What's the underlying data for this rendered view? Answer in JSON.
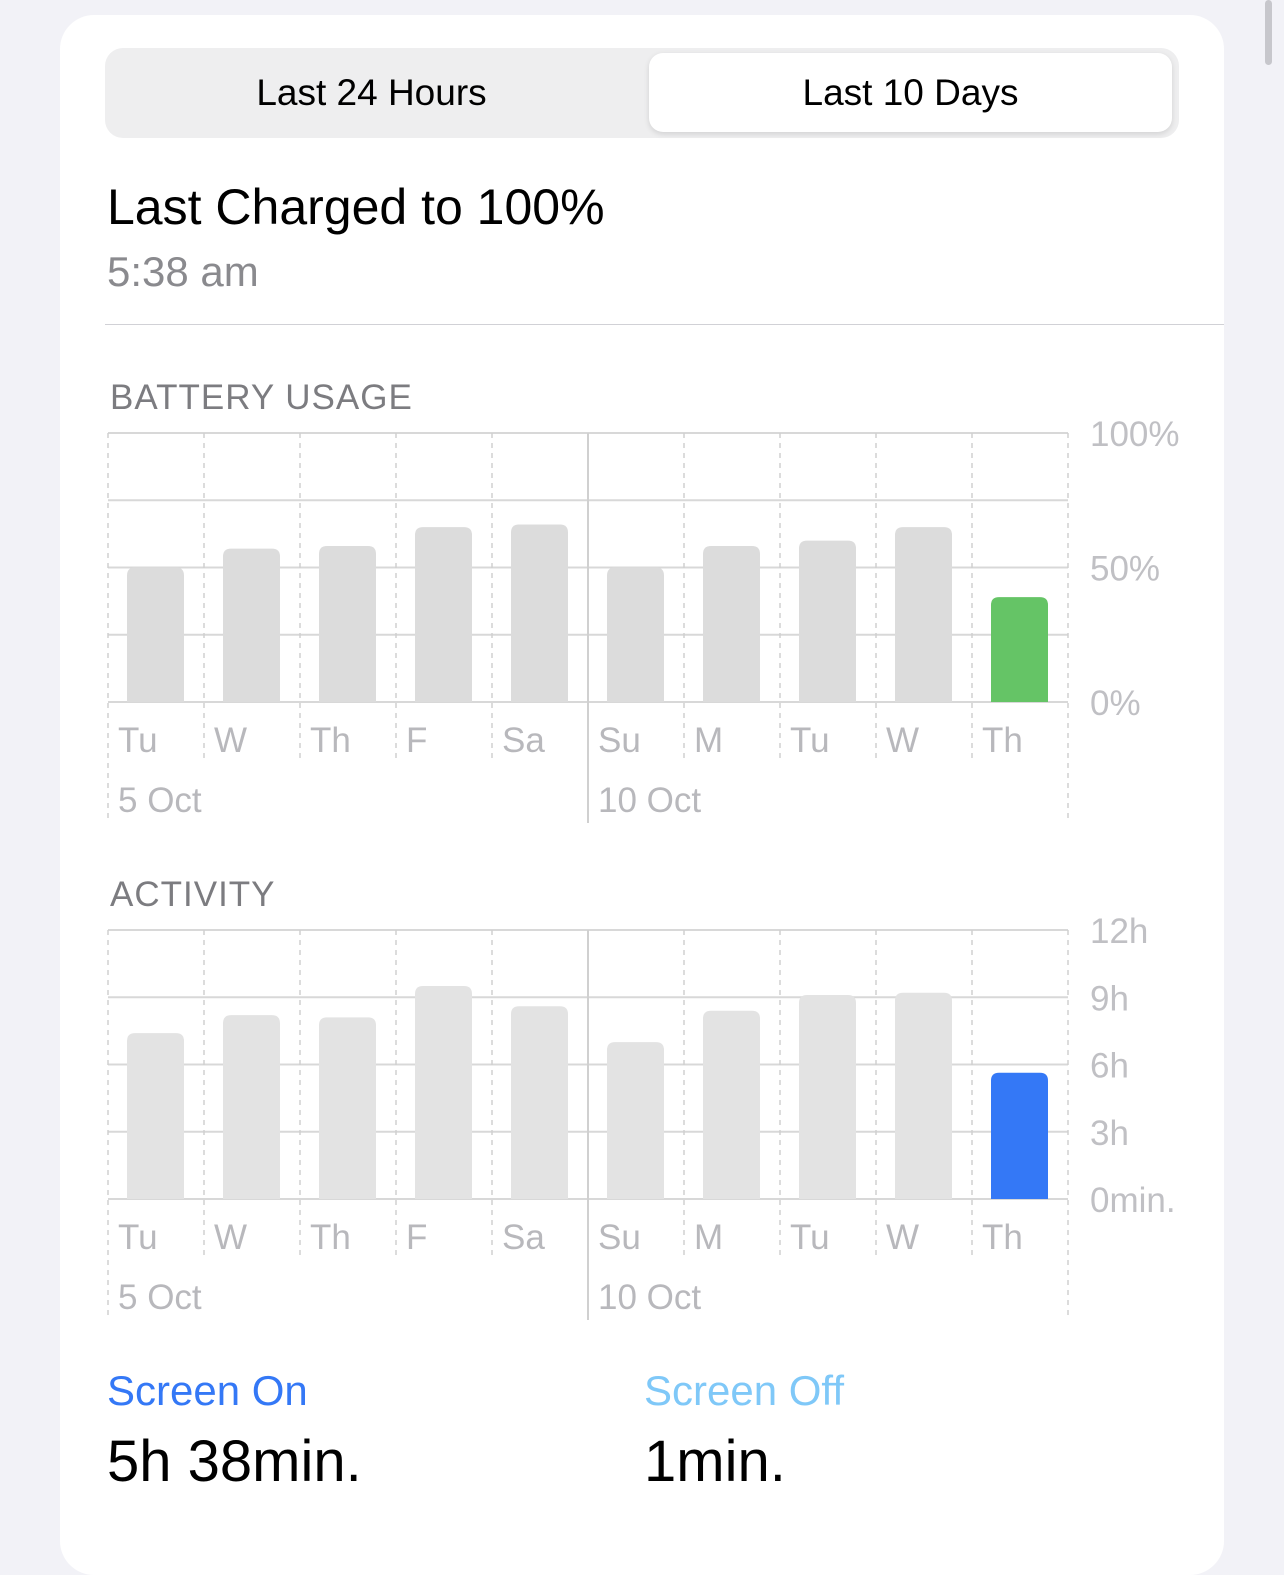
{
  "segmented": {
    "options": [
      "Last 24 Hours",
      "Last 10 Days"
    ],
    "selected": "Last 10 Days"
  },
  "last_charged": {
    "title": "Last Charged to 100%",
    "time": "5:38 am"
  },
  "day_labels": [
    "Tu",
    "W",
    "Th",
    "F",
    "Sa",
    "Su",
    "M",
    "Tu",
    "W",
    "Th"
  ],
  "date_labels": [
    {
      "index": 0,
      "label": "5 Oct"
    },
    {
      "index": 5,
      "label": "10 Oct"
    }
  ],
  "battery": {
    "heading": "BATTERY USAGE",
    "chart_data": {
      "type": "bar",
      "categories": [
        "Tu",
        "W",
        "Th",
        "F",
        "Sa",
        "Su",
        "M",
        "Tu",
        "W",
        "Th"
      ],
      "values": [
        50,
        57,
        58,
        65,
        66,
        50,
        58,
        60,
        65,
        39
      ],
      "unit": "%",
      "ylim": [
        0,
        100
      ],
      "yticks": [
        "100%",
        "50%",
        "0%"
      ],
      "highlight_index": 9,
      "bar_color": "#dcdcdc",
      "highlight_color": "#65c466"
    }
  },
  "activity": {
    "heading": "ACTIVITY",
    "chart_data": {
      "type": "bar",
      "categories": [
        "Tu",
        "W",
        "Th",
        "F",
        "Sa",
        "Su",
        "M",
        "Tu",
        "W",
        "Th"
      ],
      "values": [
        7.4,
        8.2,
        8.1,
        9.5,
        8.6,
        7.0,
        8.4,
        9.1,
        9.2,
        5.63
      ],
      "unit": "h",
      "ylim": [
        0,
        12
      ],
      "yticks": [
        "12h",
        "9h",
        "6h",
        "3h",
        "0min."
      ],
      "highlight_index": 9,
      "bar_color": "#e3e3e3",
      "highlight_color": "#3478f6"
    }
  },
  "legend": {
    "screen_on": {
      "label": "Screen On",
      "value": "5h 38min.",
      "color": "#3478f6"
    },
    "screen_off": {
      "label": "Screen Off",
      "value": "1min.",
      "color": "#7fc8f8"
    }
  }
}
